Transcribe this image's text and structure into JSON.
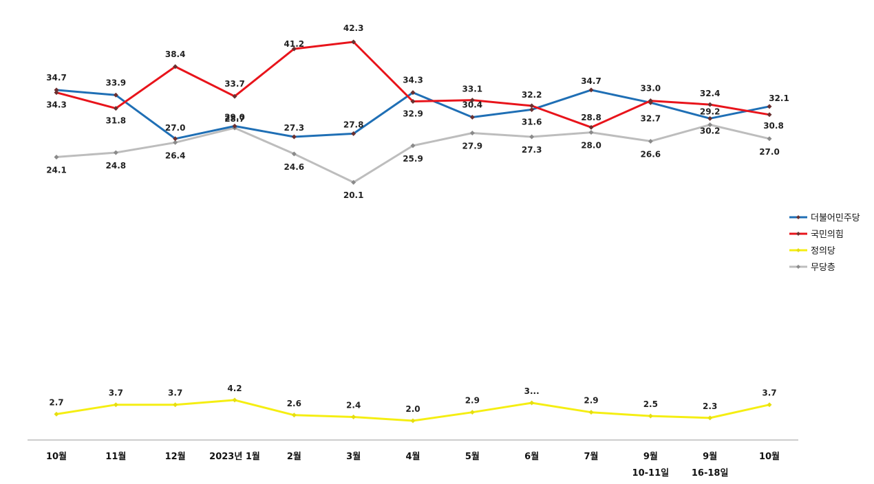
{
  "chart_data": {
    "type": "line",
    "categories": [
      [
        "10월"
      ],
      [
        "11월"
      ],
      [
        "12월"
      ],
      [
        "2023년 1월"
      ],
      [
        "2월"
      ],
      [
        "3월"
      ],
      [
        "4월"
      ],
      [
        "5월"
      ],
      [
        "6월"
      ],
      [
        "7월"
      ],
      [
        "9월",
        "10-11일"
      ],
      [
        "9월",
        "16-18일"
      ],
      [
        "10월"
      ]
    ],
    "series": [
      {
        "name": "더불어민주당",
        "color": "#1f6fb5",
        "values": [
          34.7,
          33.9,
          27.0,
          29.0,
          27.3,
          27.8,
          34.3,
          30.4,
          31.6,
          34.7,
          32.7,
          30.2,
          32.1
        ],
        "labels": [
          "34.7",
          "33.9",
          "27.0",
          "29.0",
          "27.3",
          "27.8",
          "34.3",
          "30.4",
          "31.6",
          "34.7",
          "32.7",
          "30.2",
          "32.1"
        ]
      },
      {
        "name": "국민의힘",
        "color": "#e8141b",
        "values": [
          34.3,
          31.8,
          38.4,
          33.7,
          41.2,
          42.3,
          32.9,
          33.1,
          32.2,
          28.8,
          33.0,
          32.4,
          30.8
        ],
        "labels": [
          "34.3",
          "31.8",
          "38.4",
          "33.7",
          "41.2",
          "42.3",
          "32.9",
          "33.1",
          "32.2",
          "28.8",
          "33.0",
          "32.4",
          "30.8"
        ]
      },
      {
        "name": "정의당",
        "color": "#f5ee12",
        "values": [
          2.7,
          3.7,
          3.7,
          4.2,
          2.6,
          2.4,
          2.0,
          2.9,
          3.9,
          2.9,
          2.5,
          2.3,
          3.7
        ],
        "labels": [
          "2.7",
          "3.7",
          "3.7",
          "4.2",
          "2.6",
          "2.4",
          "2.0",
          "2.9",
          "3...",
          "2.9",
          "2.5",
          "2.3",
          "3.7"
        ]
      },
      {
        "name": "무당층",
        "color": "#bdbdbd",
        "values": [
          24.1,
          24.8,
          26.4,
          28.7,
          24.6,
          20.1,
          25.9,
          27.9,
          27.3,
          28.0,
          26.6,
          29.2,
          27.0
        ],
        "labels": [
          "24.1",
          "24.8",
          "26.4",
          "28.7",
          "24.6",
          "20.1",
          "25.9",
          "27.9",
          "27.3",
          "28.0",
          "26.6",
          "29.2",
          "27.0"
        ]
      }
    ],
    "ylim": [
      0,
      44
    ],
    "legend": "right"
  }
}
